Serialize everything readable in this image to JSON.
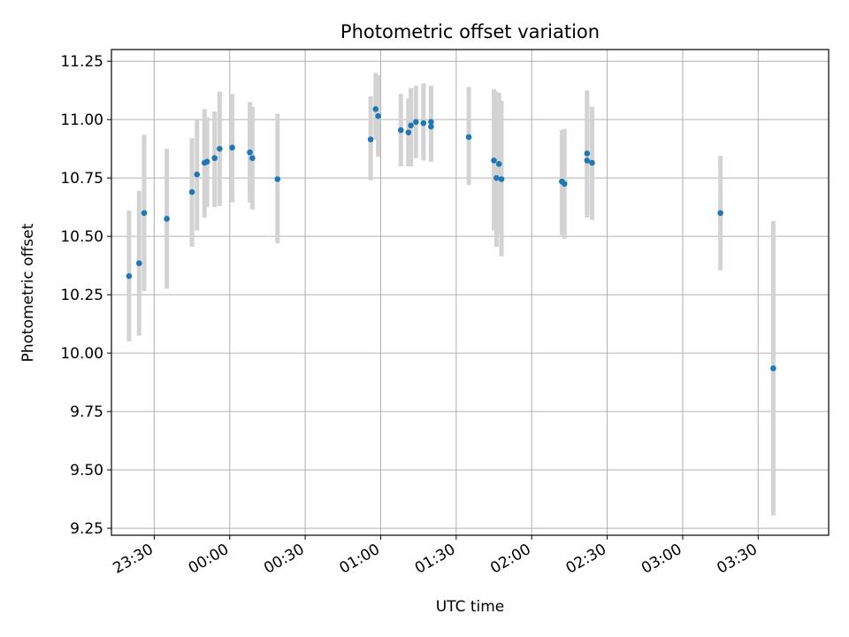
{
  "chart_data": {
    "type": "scatter",
    "title": "Photometric offset variation",
    "xlabel": "UTC time",
    "ylabel": "Photometric offset",
    "x_unit": "UTC time (HH:MM)",
    "xlim": [
      "23:13",
      "03:58"
    ],
    "ylim": [
      9.22,
      11.3
    ],
    "grid": true,
    "marker_color": "#1f77b4",
    "errorbar_color": "#d3d3d3",
    "x_tick_labels": [
      "23:30",
      "00:00",
      "00:30",
      "01:00",
      "01:30",
      "02:00",
      "02:30",
      "03:00",
      "03:30"
    ],
    "y_tick_labels": [
      "9.25",
      "9.50",
      "9.75",
      "10.00",
      "10.25",
      "10.50",
      "10.75",
      "11.00",
      "11.25"
    ],
    "points": [
      {
        "x": "23:20",
        "y": 10.33,
        "ylow": 10.05,
        "yhigh": 10.61
      },
      {
        "x": "23:24",
        "y": 10.385,
        "ylow": 10.075,
        "yhigh": 10.695
      },
      {
        "x": "23:26",
        "y": 10.6,
        "ylow": 10.265,
        "yhigh": 10.935
      },
      {
        "x": "23:35",
        "y": 10.575,
        "ylow": 10.275,
        "yhigh": 10.875
      },
      {
        "x": "23:45",
        "y": 10.69,
        "ylow": 10.455,
        "yhigh": 10.92
      },
      {
        "x": "23:47",
        "y": 10.765,
        "ylow": 10.525,
        "yhigh": 11.0
      },
      {
        "x": "23:50",
        "y": 10.815,
        "ylow": 10.58,
        "yhigh": 11.045
      },
      {
        "x": "23:51",
        "y": 10.82,
        "ylow": 10.625,
        "yhigh": 11.01
      },
      {
        "x": "23:54",
        "y": 10.835,
        "ylow": 10.625,
        "yhigh": 11.035
      },
      {
        "x": "23:56",
        "y": 10.875,
        "ylow": 10.63,
        "yhigh": 11.12
      },
      {
        "x": "00:01",
        "y": 10.88,
        "ylow": 10.645,
        "yhigh": 11.11
      },
      {
        "x": "00:08",
        "y": 10.86,
        "ylow": 10.645,
        "yhigh": 11.075
      },
      {
        "x": "00:09",
        "y": 10.835,
        "ylow": 10.615,
        "yhigh": 11.055
      },
      {
        "x": "00:19",
        "y": 10.745,
        "ylow": 10.47,
        "yhigh": 11.025
      },
      {
        "x": "00:56",
        "y": 10.915,
        "ylow": 10.74,
        "yhigh": 11.1
      },
      {
        "x": "00:58",
        "y": 11.045,
        "ylow": 10.915,
        "yhigh": 11.2
      },
      {
        "x": "00:59",
        "y": 11.015,
        "ylow": 10.84,
        "yhigh": 11.19
      },
      {
        "x": "01:08",
        "y": 10.955,
        "ylow": 10.8,
        "yhigh": 11.11
      },
      {
        "x": "01:11",
        "y": 10.945,
        "ylow": 10.8,
        "yhigh": 11.09
      },
      {
        "x": "01:12",
        "y": 10.975,
        "ylow": 10.8,
        "yhigh": 11.135
      },
      {
        "x": "01:14",
        "y": 10.99,
        "ylow": 10.835,
        "yhigh": 11.145
      },
      {
        "x": "01:17",
        "y": 10.985,
        "ylow": 10.825,
        "yhigh": 11.155
      },
      {
        "x": "01:20",
        "y": 10.99,
        "ylow": 10.83,
        "yhigh": 11.145
      },
      {
        "x": "01:20",
        "y": 10.97,
        "ylow": 10.82,
        "yhigh": 11.13
      },
      {
        "x": "01:35",
        "y": 10.925,
        "ylow": 10.72,
        "yhigh": 11.14
      },
      {
        "x": "01:45",
        "y": 10.825,
        "ylow": 10.525,
        "yhigh": 11.13
      },
      {
        "x": "01:46",
        "y": 10.75,
        "ylow": 10.455,
        "yhigh": 11.12
      },
      {
        "x": "01:47",
        "y": 10.81,
        "ylow": 10.51,
        "yhigh": 11.115
      },
      {
        "x": "01:48",
        "y": 10.745,
        "ylow": 10.415,
        "yhigh": 11.08
      },
      {
        "x": "02:12",
        "y": 10.735,
        "ylow": 10.505,
        "yhigh": 10.955
      },
      {
        "x": "02:13",
        "y": 10.725,
        "ylow": 10.49,
        "yhigh": 10.96
      },
      {
        "x": "02:22",
        "y": 10.825,
        "ylow": 10.58,
        "yhigh": 11.07
      },
      {
        "x": "02:22",
        "y": 10.855,
        "ylow": 10.59,
        "yhigh": 11.125
      },
      {
        "x": "02:24",
        "y": 10.815,
        "ylow": 10.57,
        "yhigh": 11.055
      },
      {
        "x": "03:15",
        "y": 10.6,
        "ylow": 10.355,
        "yhigh": 10.845
      },
      {
        "x": "03:36",
        "y": 9.935,
        "ylow": 9.305,
        "yhigh": 10.565
      }
    ]
  }
}
